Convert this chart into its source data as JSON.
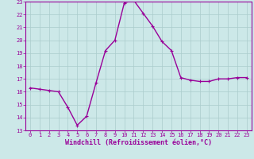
{
  "x": [
    0,
    1,
    2,
    3,
    4,
    5,
    6,
    7,
    8,
    9,
    10,
    11,
    12,
    13,
    14,
    15,
    16,
    17,
    18,
    19,
    20,
    21,
    22,
    23
  ],
  "y": [
    16.3,
    16.2,
    16.1,
    16.0,
    14.8,
    13.4,
    14.1,
    16.7,
    19.2,
    20.0,
    22.9,
    23.1,
    22.1,
    21.1,
    19.9,
    19.2,
    17.1,
    16.9,
    16.8,
    16.8,
    17.0,
    17.0,
    17.1,
    17.1
  ],
  "line_color": "#990099",
  "marker": "+",
  "marker_size": 3,
  "bg_color": "#cce8e8",
  "grid_color": "#aacccc",
  "xlabel": "Windchill (Refroidissement éolien,°C)",
  "xlabel_color": "#990099",
  "tick_color": "#990099",
  "ylim": [
    13,
    23
  ],
  "yticks": [
    13,
    14,
    15,
    16,
    17,
    18,
    19,
    20,
    21,
    22,
    23
  ],
  "xlim": [
    -0.5,
    23.5
  ],
  "xticks": [
    0,
    1,
    2,
    3,
    4,
    5,
    6,
    7,
    8,
    9,
    10,
    11,
    12,
    13,
    14,
    15,
    16,
    17,
    18,
    19,
    20,
    21,
    22,
    23
  ],
  "axis_color": "#990099",
  "line_width": 1.0,
  "tick_fontsize": 5.0,
  "xlabel_fontsize": 6.0
}
